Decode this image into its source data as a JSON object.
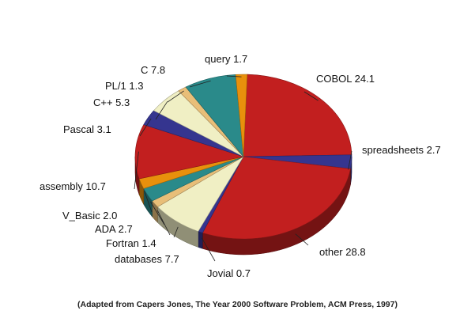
{
  "chart_data": {
    "type": "pie",
    "slices": [
      {
        "label": "COBOL",
        "value": 24.1,
        "color": "#c21f1f"
      },
      {
        "label": "spreadsheets",
        "value": 2.7,
        "color": "#35358f"
      },
      {
        "label": "other",
        "value": 28.8,
        "color": "#c21f1f"
      },
      {
        "label": "Jovial",
        "value": 0.7,
        "color": "#35358f"
      },
      {
        "label": "databases",
        "value": 7.7,
        "color": "#f0efc4"
      },
      {
        "label": "Fortran",
        "value": 1.4,
        "color": "#e8be78"
      },
      {
        "label": "ADA",
        "value": 2.7,
        "color": "#2a8a8a"
      },
      {
        "label": "V_Basic",
        "value": 2.0,
        "color": "#e8900c"
      },
      {
        "label": "assembly",
        "value": 10.7,
        "color": "#c21f1f"
      },
      {
        "label": "Pascal",
        "value": 3.1,
        "color": "#35358f"
      },
      {
        "label": "C++",
        "value": 5.3,
        "color": "#f0efc4"
      },
      {
        "label": "PL/1",
        "value": 1.3,
        "color": "#e8be78"
      },
      {
        "label": "C",
        "value": 7.8,
        "color": "#2a8a8a"
      },
      {
        "label": "query",
        "value": 1.7,
        "color": "#e8900c"
      }
    ],
    "value_labels": [
      "24.1",
      "2.7",
      "28.8",
      "0.7",
      "7.7",
      "1.4",
      "2.7",
      "2.0",
      "10.7",
      "3.1",
      "5.3",
      "1.3",
      "7.8",
      "1.7"
    ],
    "caption": "(Adapted from Capers Jones, The Year 2000 Software Problem, ACM Press, 1997)",
    "legend": "none"
  }
}
